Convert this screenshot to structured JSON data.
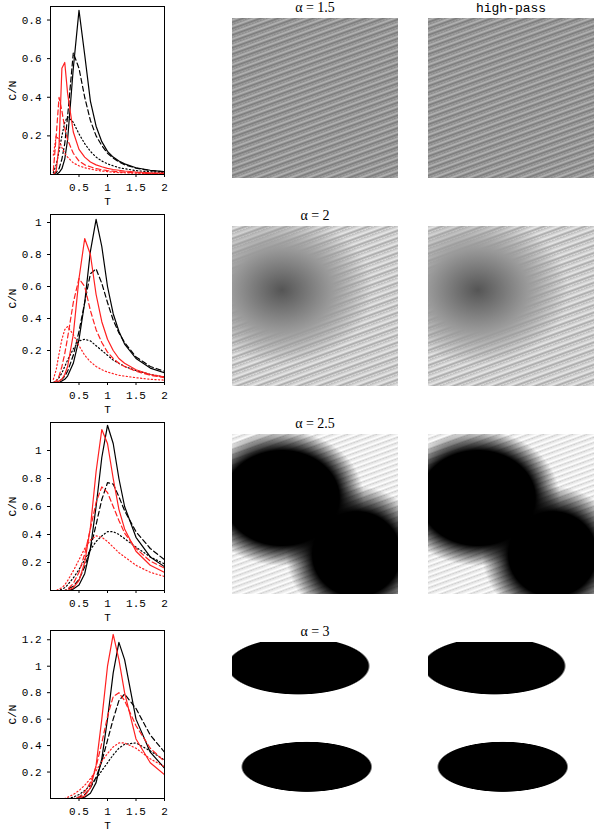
{
  "chart_data": [
    {
      "type": "line",
      "x_label": "T",
      "y_label": "C/N",
      "x": [
        0.05,
        0.1,
        0.15,
        0.2,
        0.25,
        0.3,
        0.4,
        0.5,
        0.6,
        0.7,
        0.8,
        0.9,
        1,
        1.1,
        1.2,
        1.3,
        1.5,
        1.75,
        2
      ],
      "xlim": [
        0,
        2
      ],
      "xticks": [
        0.5,
        1,
        1.5,
        2
      ],
      "ylim": [
        0,
        0.87
      ],
      "yticks": [
        0.2,
        0.4,
        0.6,
        0.8
      ],
      "series": [
        {
          "color": "#000000",
          "line_style": "solid",
          "values": [
            0,
            0,
            0.01,
            0.03,
            0.08,
            0.18,
            0.55,
            0.85,
            0.62,
            0.38,
            0.25,
            0.17,
            0.12,
            0.09,
            0.07,
            0.055,
            0.035,
            0.022,
            0.015
          ]
        },
        {
          "color": "#000000",
          "line_style": "dashed",
          "values": [
            0,
            0.01,
            0.03,
            0.08,
            0.16,
            0.3,
            0.63,
            0.55,
            0.4,
            0.28,
            0.2,
            0.15,
            0.11,
            0.085,
            0.065,
            0.05,
            0.033,
            0.02,
            0.014
          ]
        },
        {
          "color": "#000000",
          "line_style": "dotted",
          "values": [
            0.01,
            0.05,
            0.12,
            0.2,
            0.27,
            0.3,
            0.27,
            0.21,
            0.16,
            0.12,
            0.09,
            0.07,
            0.055,
            0.045,
            0.035,
            0.03,
            0.02,
            0.014,
            0.01
          ]
        },
        {
          "color": "#ff2020",
          "line_style": "solid",
          "values": [
            0,
            0.02,
            0.15,
            0.55,
            0.58,
            0.42,
            0.22,
            0.13,
            0.09,
            0.065,
            0.05,
            0.04,
            0.032,
            0.026,
            0.022,
            0.018,
            0.013,
            0.009,
            0.007
          ]
        },
        {
          "color": "#ff2020",
          "line_style": "dashed",
          "values": [
            0.02,
            0.2,
            0.4,
            0.33,
            0.24,
            0.18,
            0.11,
            0.07,
            0.05,
            0.04,
            0.03,
            0.025,
            0.02,
            0.017,
            0.014,
            0.012,
            0.009,
            0.006,
            0.005
          ]
        },
        {
          "color": "#ff2020",
          "line_style": "dotted",
          "values": [
            0.1,
            0.2,
            0.18,
            0.14,
            0.11,
            0.09,
            0.06,
            0.045,
            0.035,
            0.028,
            0.022,
            0.018,
            0.015,
            0.012,
            0.01,
            0.009,
            0.007,
            0.005,
            0.004
          ]
        }
      ]
    },
    {
      "type": "line",
      "x_label": "T",
      "y_label": "C/N",
      "x": [
        0.05,
        0.1,
        0.15,
        0.2,
        0.25,
        0.3,
        0.4,
        0.5,
        0.6,
        0.7,
        0.8,
        0.9,
        1,
        1.1,
        1.2,
        1.3,
        1.5,
        1.75,
        2
      ],
      "xlim": [
        0,
        2
      ],
      "xticks": [
        0.5,
        1,
        1.5,
        2
      ],
      "ylim": [
        0,
        1.05
      ],
      "yticks": [
        0.2,
        0.4,
        0.6,
        0.8,
        1
      ],
      "series": [
        {
          "color": "#000000",
          "line_style": "solid",
          "values": [
            0,
            0,
            0,
            0.01,
            0.02,
            0.04,
            0.12,
            0.27,
            0.5,
            0.82,
            1.02,
            0.85,
            0.6,
            0.43,
            0.32,
            0.24,
            0.15,
            0.09,
            0.06
          ]
        },
        {
          "color": "#000000",
          "line_style": "dashed",
          "values": [
            0,
            0,
            0.01,
            0.02,
            0.04,
            0.07,
            0.17,
            0.32,
            0.5,
            0.68,
            0.71,
            0.62,
            0.5,
            0.39,
            0.31,
            0.25,
            0.16,
            0.1,
            0.07
          ]
        },
        {
          "color": "#000000",
          "line_style": "dotted",
          "values": [
            0,
            0.01,
            0.03,
            0.06,
            0.1,
            0.14,
            0.21,
            0.26,
            0.27,
            0.26,
            0.23,
            0.2,
            0.17,
            0.14,
            0.12,
            0.1,
            0.075,
            0.05,
            0.035
          ]
        },
        {
          "color": "#ff2020",
          "line_style": "solid",
          "values": [
            0,
            0,
            0.01,
            0.02,
            0.05,
            0.1,
            0.3,
            0.65,
            0.9,
            0.8,
            0.55,
            0.38,
            0.27,
            0.2,
            0.15,
            0.12,
            0.08,
            0.05,
            0.035
          ]
        },
        {
          "color": "#ff2020",
          "line_style": "dashed",
          "values": [
            0,
            0.01,
            0.04,
            0.1,
            0.18,
            0.28,
            0.5,
            0.65,
            0.6,
            0.45,
            0.33,
            0.25,
            0.19,
            0.15,
            0.12,
            0.1,
            0.07,
            0.045,
            0.03
          ]
        },
        {
          "color": "#ff2020",
          "line_style": "dotted",
          "values": [
            0.02,
            0.08,
            0.18,
            0.27,
            0.33,
            0.35,
            0.3,
            0.23,
            0.17,
            0.13,
            0.1,
            0.08,
            0.065,
            0.055,
            0.045,
            0.04,
            0.03,
            0.02,
            0.015
          ]
        }
      ]
    },
    {
      "type": "line",
      "x_label": "T",
      "y_label": "C/N",
      "x": [
        0.05,
        0.1,
        0.15,
        0.2,
        0.25,
        0.3,
        0.4,
        0.5,
        0.6,
        0.7,
        0.8,
        0.9,
        1,
        1.1,
        1.2,
        1.3,
        1.5,
        1.75,
        2
      ],
      "xlim": [
        0,
        2
      ],
      "xticks": [
        0.5,
        1,
        1.5,
        2
      ],
      "ylim": [
        0,
        1.2
      ],
      "yticks": [
        0.2,
        0.4,
        0.6,
        0.8,
        1
      ],
      "series": [
        {
          "color": "#000000",
          "line_style": "solid",
          "values": [
            0,
            0,
            0,
            0,
            0,
            0,
            0.01,
            0.04,
            0.12,
            0.3,
            0.6,
            0.95,
            1.18,
            1.05,
            0.8,
            0.6,
            0.38,
            0.24,
            0.17
          ]
        },
        {
          "color": "#000000",
          "line_style": "dashed",
          "values": [
            0,
            0,
            0,
            0,
            0,
            0.01,
            0.03,
            0.08,
            0.17,
            0.3,
            0.47,
            0.65,
            0.77,
            0.76,
            0.67,
            0.57,
            0.42,
            0.3,
            0.22
          ]
        },
        {
          "color": "#000000",
          "line_style": "dotted",
          "values": [
            0,
            0,
            0,
            0.01,
            0.02,
            0.04,
            0.09,
            0.15,
            0.22,
            0.29,
            0.35,
            0.39,
            0.42,
            0.42,
            0.4,
            0.37,
            0.31,
            0.24,
            0.19
          ]
        },
        {
          "color": "#ff2020",
          "line_style": "solid",
          "values": [
            0,
            0,
            0,
            0,
            0,
            0,
            0.02,
            0.07,
            0.2,
            0.45,
            0.85,
            1.15,
            1.05,
            0.8,
            0.58,
            0.44,
            0.28,
            0.18,
            0.13
          ]
        },
        {
          "color": "#ff2020",
          "line_style": "dashed",
          "values": [
            0,
            0,
            0,
            0,
            0,
            0.01,
            0.05,
            0.13,
            0.26,
            0.44,
            0.63,
            0.74,
            0.7,
            0.6,
            0.5,
            0.41,
            0.3,
            0.21,
            0.16
          ]
        },
        {
          "color": "#ff2020",
          "line_style": "dotted",
          "values": [
            0,
            0,
            0.01,
            0.02,
            0.04,
            0.07,
            0.14,
            0.22,
            0.3,
            0.36,
            0.39,
            0.38,
            0.35,
            0.31,
            0.27,
            0.24,
            0.18,
            0.13,
            0.1
          ]
        }
      ]
    },
    {
      "type": "line",
      "x_label": "T",
      "y_label": "C/N",
      "x": [
        0.05,
        0.1,
        0.15,
        0.2,
        0.25,
        0.3,
        0.4,
        0.5,
        0.6,
        0.7,
        0.8,
        0.9,
        1,
        1.1,
        1.2,
        1.3,
        1.5,
        1.75,
        2
      ],
      "xlim": [
        0,
        2
      ],
      "xticks": [
        0.5,
        1,
        1.5,
        2
      ],
      "ylim": [
        0,
        1.27
      ],
      "yticks": [
        0.2,
        0.4,
        0.6,
        0.8,
        1,
        1.2
      ],
      "series": [
        {
          "color": "#000000",
          "line_style": "solid",
          "values": [
            0,
            0,
            0,
            0,
            0,
            0,
            0,
            0,
            0.01,
            0.04,
            0.12,
            0.3,
            0.6,
            0.95,
            1.18,
            1.05,
            0.6,
            0.35,
            0.23
          ]
        },
        {
          "color": "#000000",
          "line_style": "dashed",
          "values": [
            0,
            0,
            0,
            0,
            0,
            0,
            0,
            0.01,
            0.03,
            0.08,
            0.16,
            0.28,
            0.44,
            0.6,
            0.74,
            0.79,
            0.68,
            0.48,
            0.35
          ]
        },
        {
          "color": "#000000",
          "line_style": "dotted",
          "values": [
            0,
            0,
            0,
            0,
            0,
            0,
            0.01,
            0.03,
            0.06,
            0.1,
            0.15,
            0.21,
            0.27,
            0.33,
            0.38,
            0.41,
            0.42,
            0.36,
            0.29
          ]
        },
        {
          "color": "#ff2020",
          "line_style": "solid",
          "values": [
            0,
            0,
            0,
            0,
            0,
            0,
            0,
            0,
            0.02,
            0.08,
            0.25,
            0.6,
            1.0,
            1.24,
            1.05,
            0.8,
            0.45,
            0.27,
            0.18
          ]
        },
        {
          "color": "#ff2020",
          "line_style": "dashed",
          "values": [
            0,
            0,
            0,
            0,
            0,
            0,
            0,
            0.01,
            0.05,
            0.12,
            0.24,
            0.42,
            0.62,
            0.77,
            0.8,
            0.74,
            0.55,
            0.38,
            0.28
          ]
        },
        {
          "color": "#ff2020",
          "line_style": "dotted",
          "values": [
            0,
            0,
            0,
            0,
            0,
            0.01,
            0.03,
            0.06,
            0.1,
            0.15,
            0.21,
            0.28,
            0.34,
            0.39,
            0.42,
            0.42,
            0.38,
            0.3,
            0.24
          ]
        }
      ]
    }
  ],
  "images": {
    "column_title": "high-pass",
    "rows": [
      {
        "title": "α = 1.5"
      },
      {
        "title": "α = 2"
      },
      {
        "title": "α = 2.5"
      },
      {
        "title": "α = 3"
      }
    ]
  }
}
